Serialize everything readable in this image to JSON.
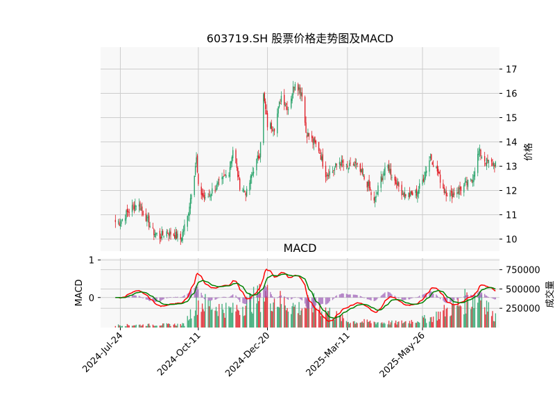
{
  "chart_data": [
    {
      "type": "candlestick",
      "title": "603719.SH 股票价格走势图及MACD",
      "y_axis_side": "right",
      "ylabel": "价格",
      "ylim": [
        9.5,
        17.9
      ],
      "yticks": [
        10,
        11,
        12,
        13,
        14,
        15,
        16,
        17
      ],
      "grid": true,
      "x_range": [
        "2024-07-04",
        "2025-08-12"
      ],
      "xticks": [
        "2024-Jul-24",
        "2024-Oct-11",
        "2024-Dec-20",
        "2025-Mar-11",
        "2025-May-26"
      ],
      "anchor_closes": [
        [
          "2024-07-24",
          10.7
        ],
        [
          "2024-07-29",
          11.0
        ],
        [
          "2024-08-05",
          11.3
        ],
        [
          "2024-08-10",
          11.5
        ],
        [
          "2024-08-19",
          10.9
        ],
        [
          "2024-08-26",
          10.3
        ],
        [
          "2024-09-02",
          10.1
        ],
        [
          "2024-09-09",
          10.3
        ],
        [
          "2024-09-16",
          10.2
        ],
        [
          "2024-09-23",
          10.0
        ],
        [
          "2024-09-30",
          10.9
        ],
        [
          "2024-10-09",
          13.3
        ],
        [
          "2024-10-11",
          12.1
        ],
        [
          "2024-10-18",
          11.6
        ],
        [
          "2024-10-25",
          12.0
        ],
        [
          "2024-11-04",
          12.4
        ],
        [
          "2024-11-11",
          12.8
        ],
        [
          "2024-11-15",
          13.7
        ],
        [
          "2024-11-22",
          12.2
        ],
        [
          "2024-11-29",
          11.9
        ],
        [
          "2024-12-06",
          12.9
        ],
        [
          "2024-12-12",
          13.5
        ],
        [
          "2024-12-16",
          15.9
        ],
        [
          "2024-12-20",
          14.7
        ],
        [
          "2024-12-27",
          14.6
        ],
        [
          "2025-01-03",
          15.9
        ],
        [
          "2025-01-10",
          15.4
        ],
        [
          "2025-01-17",
          16.5
        ],
        [
          "2025-01-24",
          16.0
        ],
        [
          "2025-01-28",
          14.4
        ],
        [
          "2025-02-10",
          13.7
        ],
        [
          "2025-02-17",
          12.7
        ],
        [
          "2025-02-24",
          12.8
        ],
        [
          "2025-03-03",
          13.2
        ],
        [
          "2025-03-11",
          12.9
        ],
        [
          "2025-03-18",
          13.1
        ],
        [
          "2025-03-25",
          12.7
        ],
        [
          "2025-04-01",
          12.2
        ],
        [
          "2025-04-07",
          11.5
        ],
        [
          "2025-04-14",
          12.5
        ],
        [
          "2025-04-21",
          13.0
        ],
        [
          "2025-04-28",
          12.4
        ],
        [
          "2025-05-06",
          11.9
        ],
        [
          "2025-05-13",
          11.8
        ],
        [
          "2025-05-20",
          11.9
        ],
        [
          "2025-05-26",
          12.4
        ],
        [
          "2025-06-03",
          13.4
        ],
        [
          "2025-06-10",
          12.8
        ],
        [
          "2025-06-17",
          12.0
        ],
        [
          "2025-06-24",
          11.8
        ],
        [
          "2025-07-01",
          12.0
        ],
        [
          "2025-07-08",
          12.2
        ],
        [
          "2025-07-15",
          12.4
        ],
        [
          "2025-07-22",
          13.6
        ],
        [
          "2025-07-29",
          13.2
        ],
        [
          "2025-08-05",
          13.1
        ]
      ],
      "up_color": "#26a269",
      "down_color": "#e01b24",
      "face_color": "#f8f8f8"
    },
    {
      "type": "macd",
      "title": "MACD",
      "ylabel": "MACD",
      "ylim": [
        -0.8,
        1.05
      ],
      "yticks": [
        0,
        1
      ],
      "macd_color": "#ff0000",
      "signal_color": "#008000",
      "hist_color": "#9b59b6"
    },
    {
      "type": "bar",
      "ylabel": "成交量",
      "y_axis_side": "right",
      "ylim": [
        0,
        900000
      ],
      "yticks": [
        250000,
        500000,
        750000
      ],
      "ytick_labels": [
        "250000",
        "500000",
        "750000"
      ],
      "anchor_volumes": [
        [
          "2024-07-24",
          30000
        ],
        [
          "2024-09-27",
          40000
        ],
        [
          "2024-10-09",
          330000
        ],
        [
          "2024-11-15",
          220000
        ],
        [
          "2024-12-16",
          420000
        ],
        [
          "2025-01-20",
          250000
        ],
        [
          "2025-02-05",
          300000
        ],
        [
          "2025-03-11",
          80000
        ],
        [
          "2025-05-01",
          60000
        ],
        [
          "2025-06-03",
          120000
        ],
        [
          "2025-07-25",
          440000
        ],
        [
          "2025-08-05",
          150000
        ]
      ]
    }
  ]
}
